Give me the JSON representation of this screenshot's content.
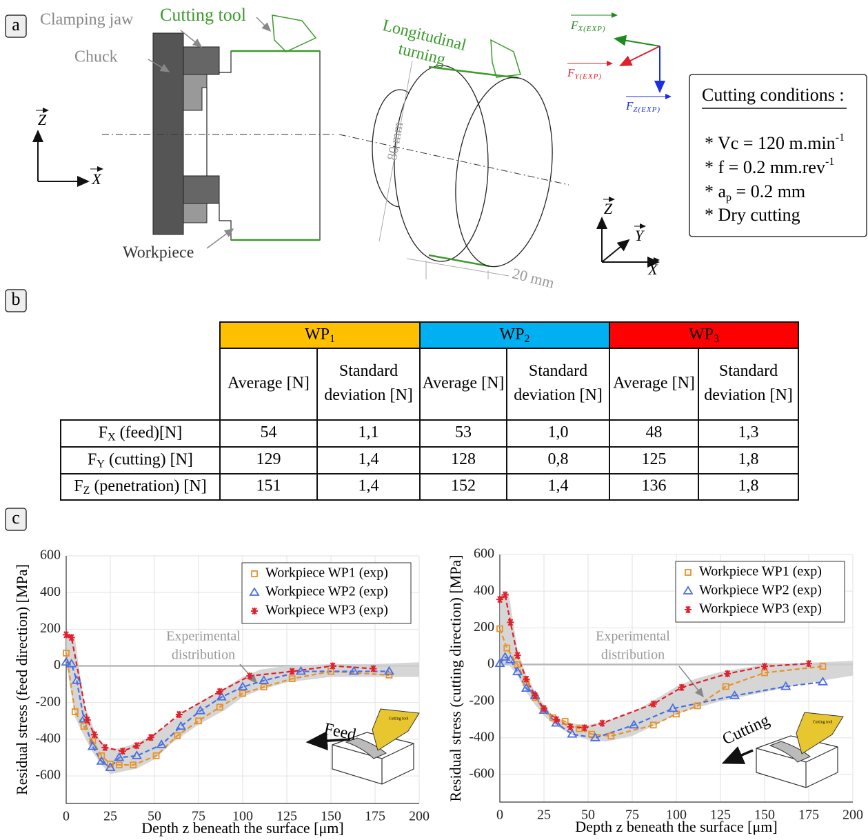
{
  "panel_labels": [
    "a",
    "b",
    "c"
  ],
  "panel_a": {
    "clamping_jaw": "Clamping jaw",
    "cutting_tool": "Cutting tool",
    "chuck": "Chuck",
    "workpiece": "Workpiece",
    "longitudinal": "Longitudinal",
    "turning": "turning",
    "diameter": "80 mm",
    "width": "20 mm",
    "axes_left": {
      "z": "Z",
      "x": "X"
    },
    "axes_right": {
      "z": "Z",
      "y": "Y",
      "x": "X"
    },
    "forces": [
      {
        "main": "F",
        "sub": "X(EXP)"
      },
      {
        "main": "F",
        "sub": "Y(EXP)"
      },
      {
        "main": "F",
        "sub": "Z(EXP)"
      }
    ],
    "conditions": {
      "title": "Cutting conditions :",
      "items": [
        {
          "text": "* Vc = 120 m.min",
          "sup": "-1"
        },
        {
          "text": "* f = 0.2 mm.rev",
          "sup": "-1"
        },
        {
          "text": "* a",
          "sub": "p",
          "rest": " = 0.2 mm"
        },
        {
          "text": "* Dry cutting"
        }
      ]
    }
  },
  "table": {
    "groups": [
      {
        "main": "WP",
        "sub": "1",
        "color": "#ffc000"
      },
      {
        "main": "WP",
        "sub": "2",
        "color": "#00b0f0"
      },
      {
        "main": "WP",
        "sub": "3",
        "color": "#ff0000"
      }
    ],
    "columns": [
      [
        "Average [N]"
      ],
      [
        "Standard",
        "deviation [N]"
      ],
      [
        "Average [N]"
      ],
      [
        "Standard",
        "deviation [N]"
      ],
      [
        "Average [N]"
      ],
      [
        "Standard",
        "deviation [N]"
      ]
    ],
    "rows": [
      {
        "label": {
          "main": "F",
          "sub": "X",
          "rest": " (feed)[N]"
        },
        "cells": [
          "54",
          "1,1",
          "53",
          "1,0",
          "48",
          "1,3"
        ]
      },
      {
        "label": {
          "main": "F",
          "sub": "Y",
          "rest": " (cutting) [N]"
        },
        "cells": [
          "129",
          "1,4",
          "128",
          "0,8",
          "125",
          "1,8"
        ]
      },
      {
        "label": {
          "main": "F",
          "sub": "Z",
          "rest": " (penetration) [N]"
        },
        "cells": [
          "151",
          "1,4",
          "152",
          "1,4",
          "136",
          "1,8"
        ]
      }
    ]
  },
  "chart_data": [
    {
      "type": "line",
      "x_label": "Depth z beneath the surface [μm]",
      "y_label": "Residual stress (feed direction) [MPa]",
      "xlim": [
        0,
        200
      ],
      "ylim": [
        -750,
        600
      ],
      "xticks": [
        0,
        25,
        50,
        75,
        100,
        125,
        150,
        175,
        200
      ],
      "yticks": [
        -600,
        -400,
        -200,
        0,
        200,
        400,
        600
      ],
      "grid": true,
      "legend": "upper right",
      "series": [
        {
          "name": "Workpiece WP1 (exp)",
          "color": "#e8912a",
          "marker": "square",
          "x": [
            0,
            5,
            10,
            15,
            20,
            25,
            30,
            38,
            51,
            63,
            75,
            87,
            100,
            112,
            128,
            150,
            183
          ],
          "values": [
            70,
            -250,
            -330,
            -410,
            -490,
            -535,
            -540,
            -540,
            -490,
            -380,
            -300,
            -225,
            -150,
            -115,
            -70,
            -30,
            -50
          ]
        },
        {
          "name": "Workpiece WP2 (exp)",
          "color": "#4a6fe0",
          "marker": "triangle",
          "x": [
            0,
            3,
            6,
            10,
            15,
            20,
            25,
            30,
            40,
            54,
            65,
            76,
            88,
            100,
            112,
            133,
            163,
            183
          ],
          "values": [
            20,
            10,
            -80,
            -290,
            -440,
            -520,
            -555,
            -500,
            -490,
            -430,
            -330,
            -245,
            -170,
            -115,
            -80,
            -30,
            -30,
            -30
          ]
        },
        {
          "name": "Workpiece WP3 (exp)",
          "color": "#e0202a",
          "marker": "star",
          "x": [
            0,
            3,
            12,
            16,
            22,
            32,
            40,
            48,
            64,
            87,
            104,
            128,
            151,
            174
          ],
          "values": [
            170,
            155,
            -295,
            -375,
            -445,
            -465,
            -435,
            -390,
            -265,
            -140,
            -55,
            -30,
            0,
            -15
          ]
        }
      ],
      "band": {
        "color": "#cfcfcf",
        "x": [
          0,
          5,
          10,
          15,
          20,
          25,
          30,
          40,
          50,
          60,
          75,
          90,
          100,
          110,
          125,
          150,
          175,
          200
        ],
        "lower": [
          20,
          -280,
          -380,
          -470,
          -540,
          -590,
          -580,
          -560,
          -510,
          -420,
          -320,
          -240,
          -170,
          -130,
          -90,
          -60,
          -60,
          -60
        ],
        "upper": [
          180,
          150,
          -200,
          -330,
          -420,
          -450,
          -450,
          -420,
          -370,
          -300,
          -200,
          -120,
          -60,
          -20,
          0,
          10,
          10,
          20
        ]
      },
      "annotation": [
        "Experimental",
        "distribution"
      ],
      "inset": {
        "label": "Feed",
        "tool": "Cutting tool"
      }
    },
    {
      "type": "line",
      "x_label": "Depth z beneath the surface [μm]",
      "y_label": "Residual stress (cutting direction) [MPa]",
      "xlim": [
        0,
        200
      ],
      "ylim": [
        -750,
        600
      ],
      "xticks": [
        0,
        25,
        50,
        75,
        100,
        125,
        150,
        175,
        200
      ],
      "yticks": [
        -600,
        -400,
        -200,
        0,
        200,
        400,
        600
      ],
      "grid": true,
      "legend": "upper right",
      "series": [
        {
          "name": "Workpiece WP1 (exp)",
          "color": "#e8912a",
          "marker": "square",
          "x": [
            0,
            4,
            10,
            15,
            20,
            25,
            30,
            37,
            45,
            52,
            63,
            87,
            100,
            112,
            128,
            150,
            183
          ],
          "values": [
            195,
            90,
            0,
            -100,
            -180,
            -250,
            -290,
            -310,
            -350,
            -380,
            -390,
            -330,
            -270,
            -225,
            -120,
            -45,
            -10
          ]
        },
        {
          "name": "Workpiece WP2 (exp)",
          "color": "#4a6fe0",
          "marker": "triangle",
          "x": [
            0,
            3,
            6,
            10,
            15,
            20,
            25,
            32,
            41,
            54,
            76,
            98,
            133,
            162,
            183
          ],
          "values": [
            5,
            40,
            25,
            -40,
            -130,
            -170,
            -250,
            -320,
            -380,
            -400,
            -330,
            -240,
            -170,
            -120,
            -95
          ]
        },
        {
          "name": "Workpiece WP3 (exp)",
          "color": "#e0202a",
          "marker": "star",
          "x": [
            0,
            3,
            6,
            10,
            15,
            20,
            25,
            32,
            40,
            48,
            58,
            87,
            103,
            129,
            150,
            175
          ],
          "values": [
            355,
            380,
            230,
            50,
            -80,
            -170,
            -240,
            -300,
            -340,
            -345,
            -320,
            -215,
            -125,
            -50,
            -10,
            5
          ]
        }
      ],
      "band": {
        "color": "#cfcfcf",
        "x": [
          0,
          5,
          10,
          15,
          20,
          25,
          30,
          40,
          50,
          60,
          75,
          90,
          100,
          110,
          125,
          150,
          175,
          200
        ],
        "lower": [
          0,
          0,
          -60,
          -150,
          -220,
          -280,
          -320,
          -380,
          -410,
          -420,
          -390,
          -320,
          -270,
          -240,
          -200,
          -150,
          -100,
          -60
        ],
        "upper": [
          380,
          390,
          80,
          -60,
          -150,
          -220,
          -280,
          -320,
          -330,
          -310,
          -260,
          -180,
          -120,
          -80,
          -40,
          0,
          10,
          20
        ]
      },
      "annotation": [
        "Experimental",
        "distribution"
      ],
      "inset": {
        "label": "Cutting",
        "tool": "Cutting tool"
      }
    }
  ]
}
